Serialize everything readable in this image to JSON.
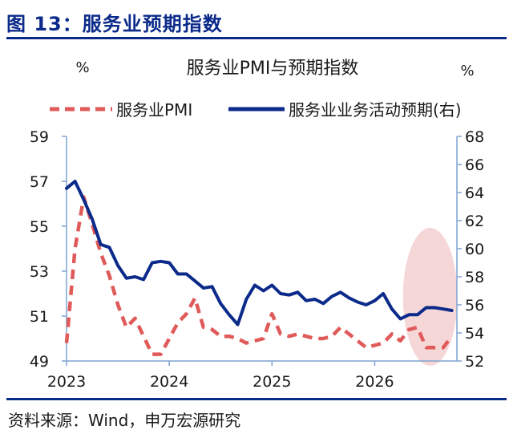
{
  "figure": {
    "title": "图 13：服务业预期指数",
    "source": "资料来源：Wind，申万宏源研究"
  },
  "chart_data": {
    "type": "line",
    "title": "服务业PMI与预期指数",
    "y_left_unit": "%",
    "y_right_unit": "%",
    "x_tick_labels": [
      "2023",
      "2024",
      "2025",
      "2026"
    ],
    "left_axis": {
      "ylim": [
        49,
        59
      ],
      "ticks": [
        49,
        51,
        53,
        55,
        57,
        59
      ]
    },
    "right_axis": {
      "ylim": [
        52,
        68
      ],
      "ticks": [
        52,
        54,
        56,
        58,
        60,
        62,
        64,
        66,
        68
      ]
    },
    "x_range": [
      2023.0,
      2026.8
    ],
    "legend_position": "top",
    "colors": {
      "pmi": "#e05a5a",
      "expect": "#0b2a8a",
      "axis": "#7fa3d0",
      "highlight": "#f3c9c9"
    },
    "series": [
      {
        "name": "服务业PMI",
        "axis": "left",
        "style": "dashed",
        "x": [
          2023.0,
          2023.083,
          2023.167,
          2023.25,
          2023.333,
          2023.417,
          2023.5,
          2023.583,
          2023.667,
          2023.75,
          2023.833,
          2023.917,
          2024.0,
          2024.083,
          2024.167,
          2024.25,
          2024.333,
          2024.417,
          2024.5,
          2024.583,
          2024.667,
          2024.75,
          2024.833,
          2024.917,
          2025.0,
          2025.083,
          2025.167,
          2025.25,
          2025.333,
          2025.417,
          2025.5,
          2025.583,
          2025.667,
          2025.75,
          2025.833,
          2025.917,
          2026.0,
          2026.083,
          2026.167,
          2026.25,
          2026.333,
          2026.417,
          2026.5,
          2026.583,
          2026.667,
          2026.75
        ],
        "values": [
          49.8,
          54.0,
          56.3,
          55.1,
          53.8,
          52.8,
          51.5,
          50.5,
          50.9,
          50.1,
          49.3,
          49.3,
          50.0,
          50.7,
          51.1,
          51.8,
          50.5,
          50.4,
          50.1,
          50.1,
          50.0,
          49.8,
          49.9,
          50.0,
          51.1,
          50.2,
          50.1,
          50.2,
          50.1,
          50.0,
          50.0,
          50.1,
          50.5,
          50.2,
          49.9,
          49.6,
          49.7,
          49.8,
          50.2,
          49.9,
          50.4,
          50.5,
          49.6,
          49.6,
          49.6,
          50.1
        ]
      },
      {
        "name": "服务业业务活动预期(右)",
        "axis": "right",
        "style": "solid",
        "x": [
          2023.0,
          2023.083,
          2023.167,
          2023.25,
          2023.333,
          2023.417,
          2023.5,
          2023.583,
          2023.667,
          2023.75,
          2023.833,
          2023.917,
          2024.0,
          2024.083,
          2024.167,
          2024.25,
          2024.333,
          2024.417,
          2024.5,
          2024.583,
          2024.667,
          2024.75,
          2024.833,
          2024.917,
          2025.0,
          2025.083,
          2025.167,
          2025.25,
          2025.333,
          2025.417,
          2025.5,
          2025.583,
          2025.667,
          2025.75,
          2025.833,
          2025.917,
          2026.0,
          2026.083,
          2026.167,
          2026.25,
          2026.333,
          2026.417,
          2026.5,
          2026.583,
          2026.667,
          2026.75
        ],
        "values": [
          64.3,
          64.8,
          63.5,
          62.1,
          60.3,
          60.1,
          58.8,
          57.9,
          58.0,
          57.8,
          59.0,
          59.1,
          59.0,
          58.2,
          58.2,
          57.7,
          57.2,
          57.3,
          56.1,
          55.3,
          54.6,
          56.4,
          57.4,
          57.0,
          57.4,
          56.8,
          56.7,
          56.9,
          56.3,
          56.4,
          56.1,
          56.6,
          56.9,
          56.5,
          56.2,
          56.0,
          56.3,
          56.8,
          55.7,
          55.0,
          55.3,
          55.3,
          55.8,
          55.8,
          55.7,
          55.6
        ]
      }
    ],
    "annotation": {
      "shape": "ellipse",
      "note": ""
    }
  }
}
